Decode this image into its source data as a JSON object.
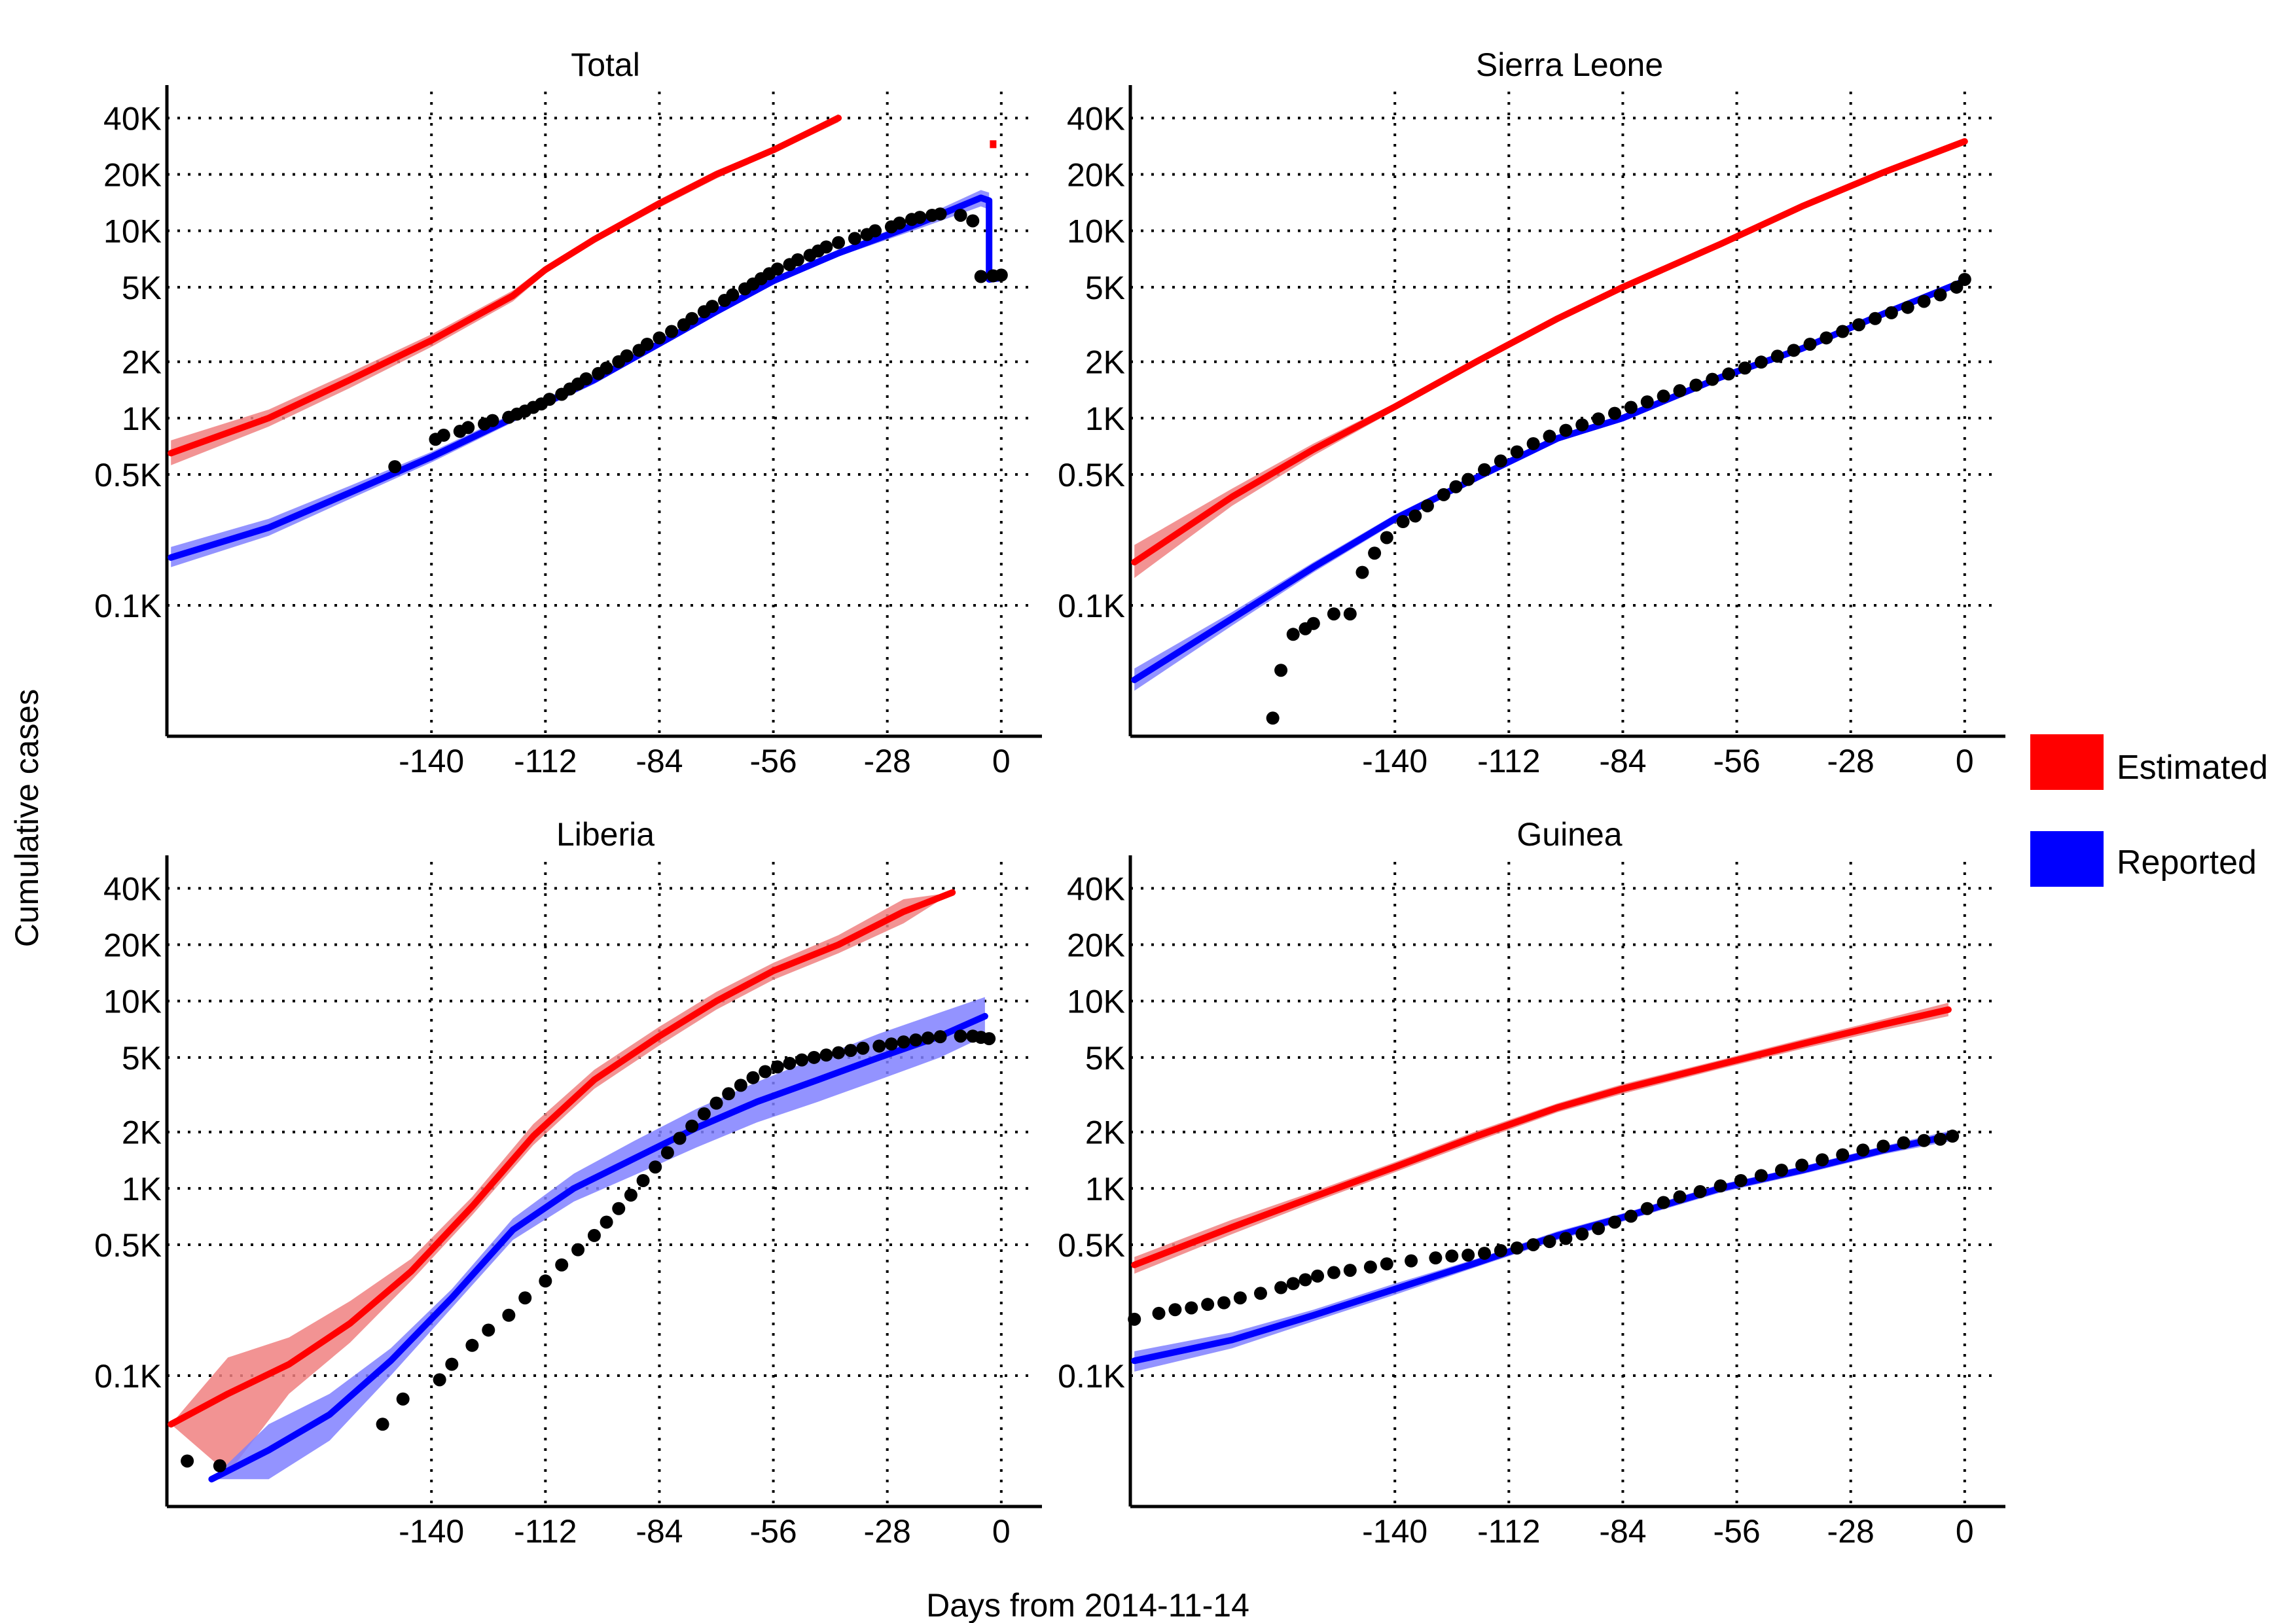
{
  "figure": {
    "xlabel": "Days from 2014-11-14",
    "ylabel": "Cumulative cases"
  },
  "legend": {
    "items": [
      {
        "label": "Estimated",
        "color": "#ff0000"
      },
      {
        "label": "Reported",
        "color": "#0000ff"
      }
    ]
  },
  "colors": {
    "estimated": "#ff0000",
    "estimated_band": "#f08080",
    "reported": "#0000ff",
    "reported_band": "#8080ff",
    "points": "#000000"
  },
  "chart_data": [
    {
      "type": "line",
      "title": "Total",
      "y_scale": "log",
      "xlim": [
        -205,
        10
      ],
      "ylim": [
        20,
        60000
      ],
      "x_ticks": [
        "-140",
        "-112",
        "-84",
        "-56",
        "-28",
        "0"
      ],
      "y_ticks": [
        "40K",
        "20K",
        "10K",
        "5K",
        "2K",
        "1K",
        "0.5K",
        "0.1K"
      ],
      "grid": true,
      "series": [
        {
          "name": "Estimated",
          "x": [
            -204,
            -180,
            -160,
            -140,
            -120,
            -112,
            -100,
            -84,
            -70,
            -56,
            -40
          ],
          "y": [
            650,
            1000,
            1600,
            2600,
            4500,
            6200,
            9000,
            14000,
            20000,
            27000,
            40000
          ],
          "band_lower": [
            560,
            900,
            1450,
            2400,
            4200,
            5900,
            8600,
            13300,
            19000,
            26000,
            38000
          ],
          "band_upper": [
            760,
            1110,
            1750,
            2800,
            4800,
            6500,
            9400,
            14700,
            21000,
            28000,
            42000
          ]
        },
        {
          "name": "Reported",
          "x": [
            -204,
            -180,
            -160,
            -140,
            -120,
            -100,
            -84,
            -70,
            -56,
            -40,
            -20,
            -5,
            -3,
            -3,
            0
          ],
          "y": [
            180,
            260,
            400,
            620,
            1000,
            1600,
            2500,
            3700,
            5400,
            7600,
            11000,
            15000,
            14500,
            5500,
            5600
          ],
          "band_lower": [
            160,
            235,
            370,
            580,
            950,
            1520,
            2400,
            3550,
            5200,
            7300,
            10300,
            13500,
            13000,
            5300,
            5400
          ],
          "band_upper": [
            205,
            290,
            435,
            660,
            1060,
            1680,
            2600,
            3850,
            5600,
            7900,
            11700,
            16500,
            16000,
            5700,
            5800
          ]
        },
        {
          "name": "Reported data",
          "x": [
            -149,
            -139,
            -137,
            -133,
            -131,
            -127,
            -125,
            -121,
            -119,
            -117,
            -115,
            -113,
            -111,
            -108,
            -106,
            -104,
            -102,
            -99,
            -97,
            -94,
            -92,
            -89,
            -87,
            -84,
            -81,
            -78,
            -76,
            -73,
            -71,
            -68,
            -66,
            -63,
            -61,
            -59,
            -57,
            -55,
            -52,
            -50,
            -47,
            -45,
            -43,
            -40,
            -36,
            -33,
            -31,
            -27,
            -25,
            -22,
            -20,
            -17,
            -15,
            -10,
            -7,
            -5,
            -2,
            0
          ],
          "y": [
            550,
            770,
            810,
            850,
            890,
            930,
            970,
            1010,
            1050,
            1090,
            1140,
            1190,
            1260,
            1340,
            1430,
            1520,
            1620,
            1730,
            1850,
            2000,
            2150,
            2300,
            2480,
            2680,
            2900,
            3150,
            3400,
            3700,
            3950,
            4250,
            4550,
            4900,
            5200,
            5550,
            5900,
            6250,
            6600,
            7000,
            7400,
            7800,
            8200,
            8650,
            9100,
            9550,
            10000,
            10500,
            11000,
            11500,
            11800,
            12100,
            12300,
            12100,
            11300,
            5700,
            5750,
            5800
          ]
        },
        {
          "name": "Estimated (final)",
          "x": [
            -2
          ],
          "y": [
            29000
          ]
        }
      ]
    },
    {
      "type": "line",
      "title": "Sierra Leone",
      "y_scale": "log",
      "xlim": [
        -205,
        10
      ],
      "ylim": [
        20,
        60000
      ],
      "x_ticks": [
        "-140",
        "-112",
        "-84",
        "-56",
        "-28",
        "0"
      ],
      "y_ticks": [
        "40K",
        "20K",
        "10K",
        "5K",
        "2K",
        "1K",
        "0.5K",
        "0.1K"
      ],
      "grid": true,
      "series": [
        {
          "name": "Estimated",
          "x": [
            -204,
            -180,
            -160,
            -140,
            -120,
            -100,
            -84,
            -60,
            -40,
            -20,
            0
          ],
          "y": [
            170,
            380,
            680,
            1150,
            2000,
            3400,
            5000,
            8500,
            13500,
            20500,
            30000
          ],
          "band_lower": [
            140,
            340,
            630,
            1100,
            1930,
            3300,
            4880,
            8300,
            13200,
            20000,
            29000
          ],
          "band_upper": [
            210,
            420,
            730,
            1200,
            2070,
            3500,
            5120,
            8700,
            13800,
            21000,
            31000
          ]
        },
        {
          "name": "Reported",
          "x": [
            -204,
            -180,
            -160,
            -140,
            -120,
            -100,
            -84,
            -60,
            -40,
            -20,
            0
          ],
          "y": [
            40,
            85,
            160,
            290,
            480,
            780,
            1000,
            1650,
            2350,
            3600,
            5400
          ],
          "band_lower": [
            35,
            78,
            150,
            275,
            460,
            750,
            970,
            1600,
            2280,
            3500,
            5200
          ],
          "band_upper": [
            46,
            92,
            170,
            305,
            500,
            810,
            1030,
            1700,
            2420,
            3700,
            5600
          ]
        },
        {
          "name": "Reported data",
          "x": [
            -170,
            -168,
            -165,
            -162,
            -160,
            -155,
            -151,
            -148,
            -145,
            -142,
            -138,
            -135,
            -132,
            -128,
            -125,
            -122,
            -118,
            -114,
            -110,
            -106,
            -102,
            -98,
            -94,
            -90,
            -86,
            -82,
            -78,
            -74,
            -70,
            -66,
            -62,
            -58,
            -54,
            -50,
            -46,
            -42,
            -38,
            -34,
            -30,
            -26,
            -22,
            -18,
            -14,
            -10,
            -6,
            -2,
            0
          ],
          "y": [
            25,
            45,
            70,
            75,
            80,
            90,
            90,
            150,
            190,
            230,
            280,
            300,
            340,
            390,
            430,
            470,
            530,
            590,
            660,
            730,
            800,
            860,
            920,
            990,
            1060,
            1140,
            1220,
            1310,
            1400,
            1500,
            1610,
            1720,
            1850,
            1990,
            2140,
            2300,
            2480,
            2680,
            2900,
            3150,
            3400,
            3650,
            3900,
            4200,
            4550,
            5000,
            5500
          ]
        }
      ]
    },
    {
      "type": "line",
      "title": "Liberia",
      "y_scale": "log",
      "xlim": [
        -205,
        10
      ],
      "ylim": [
        20,
        60000
      ],
      "x_ticks": [
        "-140",
        "-112",
        "-84",
        "-56",
        "-28",
        "0"
      ],
      "y_ticks": [
        "40K",
        "20K",
        "10K",
        "5K",
        "2K",
        "1K",
        "0.5K",
        "0.1K"
      ],
      "grid": true,
      "series": [
        {
          "name": "Estimated",
          "x": [
            -204,
            -190,
            -175,
            -160,
            -145,
            -130,
            -115,
            -100,
            -84,
            -70,
            -56,
            -40,
            -24,
            -12
          ],
          "y": [
            55,
            80,
            115,
            190,
            360,
            800,
            1900,
            3800,
            6500,
            10000,
            14500,
            20000,
            30000,
            38000
          ],
          "band_lower": [
            55,
            30,
            80,
            150,
            320,
            720,
            1700,
            3400,
            5800,
            9000,
            13000,
            18000,
            26000,
            38000
          ],
          "band_upper": [
            55,
            125,
            160,
            250,
            420,
            900,
            2200,
            4300,
            7300,
            11200,
            16000,
            22500,
            35000,
            38000
          ]
        },
        {
          "name": "Reported",
          "x": [
            -194,
            -180,
            -165,
            -150,
            -135,
            -120,
            -105,
            -90,
            -75,
            -60,
            -45,
            -30,
            -15,
            -4
          ],
          "y": [
            28,
            40,
            62,
            120,
            260,
            600,
            1000,
            1450,
            2100,
            2900,
            3800,
            5000,
            6500,
            8300
          ],
          "band_lower": [
            28,
            28,
            45,
            100,
            230,
            530,
            850,
            1180,
            1650,
            2250,
            2900,
            3800,
            5000,
            6500
          ],
          "band_upper": [
            28,
            55,
            80,
            140,
            290,
            690,
            1200,
            1800,
            2650,
            3700,
            5000,
            6700,
            8700,
            10500
          ]
        },
        {
          "name": "Reported data",
          "x": [
            -200,
            -192,
            -152,
            -147,
            -138,
            -135,
            -130,
            -126,
            -121,
            -117,
            -112,
            -108,
            -104,
            -100,
            -97,
            -94,
            -91,
            -88,
            -85,
            -82,
            -79,
            -76,
            -73,
            -70,
            -67,
            -64,
            -61,
            -58,
            -55,
            -52,
            -49,
            -46,
            -43,
            -40,
            -37,
            -34,
            -30,
            -27,
            -24,
            -21,
            -18,
            -15,
            -10,
            -7,
            -5,
            -3
          ],
          "y": [
            35,
            33,
            55,
            75,
            95,
            115,
            145,
            175,
            210,
            260,
            320,
            390,
            470,
            560,
            660,
            780,
            920,
            1100,
            1300,
            1550,
            1850,
            2150,
            2500,
            2850,
            3200,
            3550,
            3900,
            4200,
            4450,
            4650,
            4850,
            5000,
            5150,
            5300,
            5450,
            5600,
            5750,
            5900,
            6050,
            6200,
            6350,
            6450,
            6500,
            6500,
            6400,
            6300
          ]
        }
      ]
    },
    {
      "type": "line",
      "title": "Guinea",
      "y_scale": "log",
      "xlim": [
        -205,
        10
      ],
      "ylim": [
        20,
        60000
      ],
      "x_ticks": [
        "-140",
        "-112",
        "-84",
        "-56",
        "-28",
        "0"
      ],
      "y_ticks": [
        "40K",
        "20K",
        "10K",
        "5K",
        "2K",
        "1K",
        "0.5K",
        "0.1K"
      ],
      "grid": true,
      "series": [
        {
          "name": "Estimated",
          "x": [
            -204,
            -180,
            -160,
            -140,
            -120,
            -100,
            -84,
            -60,
            -40,
            -20,
            -4
          ],
          "y": [
            390,
            620,
            900,
            1300,
            1900,
            2700,
            3400,
            4600,
            5900,
            7500,
            9000
          ],
          "band_lower": [
            350,
            570,
            840,
            1220,
            1780,
            2550,
            3200,
            4350,
            5550,
            7000,
            8300
          ],
          "band_upper": [
            430,
            680,
            960,
            1380,
            2020,
            2850,
            3600,
            4850,
            6250,
            8000,
            9800
          ]
        },
        {
          "name": "Reported",
          "x": [
            -204,
            -180,
            -160,
            -140,
            -120,
            -100,
            -84,
            -60,
            -40,
            -20,
            -4
          ],
          "y": [
            120,
            155,
            210,
            290,
            400,
            560,
            700,
            1000,
            1250,
            1600,
            1900
          ],
          "band_lower": [
            105,
            140,
            195,
            270,
            380,
            530,
            665,
            950,
            1190,
            1520,
            1780
          ],
          "band_upper": [
            135,
            170,
            225,
            310,
            420,
            590,
            735,
            1050,
            1310,
            1680,
            2020
          ]
        },
        {
          "name": "Reported data",
          "x": [
            -204,
            -198,
            -194,
            -190,
            -186,
            -182,
            -178,
            -173,
            -168,
            -165,
            -162,
            -159,
            -155,
            -151,
            -146,
            -142,
            -136,
            -130,
            -126,
            -122,
            -118,
            -114,
            -110,
            -106,
            -102,
            -98,
            -94,
            -90,
            -86,
            -82,
            -78,
            -74,
            -70,
            -65,
            -60,
            -55,
            -50,
            -45,
            -40,
            -35,
            -30,
            -25,
            -20,
            -15,
            -10,
            -6,
            -3
          ],
          "y": [
            200,
            215,
            225,
            230,
            240,
            245,
            260,
            275,
            295,
            310,
            325,
            340,
            355,
            365,
            380,
            395,
            410,
            425,
            435,
            440,
            450,
            465,
            480,
            500,
            520,
            540,
            570,
            610,
            660,
            710,
            780,
            840,
            900,
            960,
            1030,
            1100,
            1170,
            1250,
            1330,
            1420,
            1510,
            1600,
            1680,
            1750,
            1800,
            1830,
            1900
          ]
        }
      ]
    }
  ]
}
